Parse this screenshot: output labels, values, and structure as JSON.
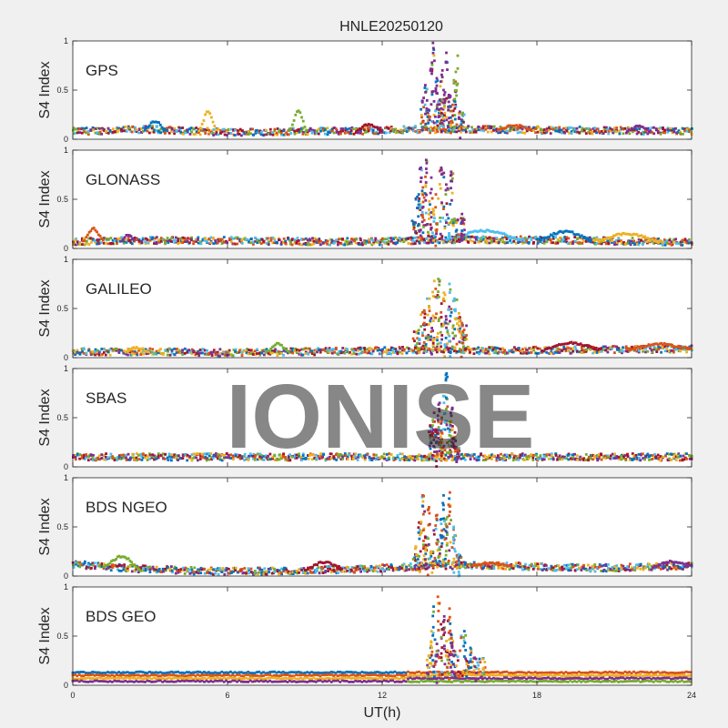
{
  "watermark": "IONISE",
  "chart_data": {
    "type": "scatter",
    "title": "HNLE20250120",
    "xlabel": "UT(h)",
    "ylabel": "S4 Index",
    "xlim": [
      0,
      24
    ],
    "xticks": [
      "0",
      "6",
      "12",
      "18",
      "24"
    ],
    "ylim": [
      0,
      1
    ],
    "yticks": [
      "0",
      "0.5",
      "1"
    ],
    "grid": false,
    "colors": [
      "#0072BD",
      "#D95319",
      "#EDB120",
      "#7E2F8E",
      "#77AC30",
      "#4DBEEE",
      "#A2142F"
    ],
    "panels": [
      {
        "label": "GPS",
        "baseline": [
          [
            0,
            0.08
          ],
          [
            3,
            0.1
          ],
          [
            6,
            0.07
          ],
          [
            9,
            0.08
          ],
          [
            12,
            0.09
          ],
          [
            13.5,
            0.1
          ],
          [
            16,
            0.1
          ],
          [
            20,
            0.09
          ],
          [
            24,
            0.08
          ]
        ],
        "arcs": [
          [
            2.8,
            3.6,
            0.18
          ],
          [
            4.9,
            5.6,
            0.28
          ],
          [
            8.4,
            9.1,
            0.28
          ],
          [
            11.0,
            12.0,
            0.15
          ],
          [
            16.5,
            17.8,
            0.14
          ],
          [
            21.5,
            22.4,
            0.13
          ]
        ],
        "spike_window": [
          13.5,
          15.2
        ],
        "spikes": [
          {
            "x": 13.6,
            "y": 0.42,
            "c": 3
          },
          {
            "x": 13.7,
            "y": 0.55,
            "c": 3
          },
          {
            "x": 13.8,
            "y": 0.3,
            "c": 3
          },
          {
            "x": 13.9,
            "y": 0.78,
            "c": 3
          },
          {
            "x": 14.0,
            "y": 0.98,
            "c": 3
          },
          {
            "x": 14.1,
            "y": 0.62,
            "c": 3
          },
          {
            "x": 14.2,
            "y": 0.4,
            "c": 3
          },
          {
            "x": 14.3,
            "y": 0.7,
            "c": 3
          },
          {
            "x": 14.4,
            "y": 0.5,
            "c": 3
          },
          {
            "x": 14.5,
            "y": 0.88,
            "c": 3
          },
          {
            "x": 14.6,
            "y": 0.45,
            "c": 3
          },
          {
            "x": 14.7,
            "y": 0.35,
            "c": 1
          },
          {
            "x": 14.8,
            "y": 0.6,
            "c": 4
          },
          {
            "x": 14.9,
            "y": 0.85,
            "c": 4
          },
          {
            "x": 15.0,
            "y": 0.28,
            "c": 3
          },
          {
            "x": 14.4,
            "y": 0.32,
            "c": 2
          }
        ]
      },
      {
        "label": "GLONASS",
        "baseline": [
          [
            0,
            0.07
          ],
          [
            3,
            0.08
          ],
          [
            6,
            0.08
          ],
          [
            9,
            0.07
          ],
          [
            12,
            0.07
          ],
          [
            14,
            0.09
          ],
          [
            16,
            0.09
          ],
          [
            20,
            0.08
          ],
          [
            24,
            0.06
          ]
        ],
        "arcs": [
          [
            0.4,
            1.2,
            0.2
          ],
          [
            1.9,
            2.4,
            0.14
          ],
          [
            14.5,
            17.5,
            0.18
          ],
          [
            18.0,
            20.2,
            0.17
          ],
          [
            20.2,
            22.8,
            0.15
          ]
        ],
        "spike_window": [
          13.2,
          15.2
        ],
        "spikes": [
          {
            "x": 13.2,
            "y": 0.28,
            "c": 0
          },
          {
            "x": 13.4,
            "y": 0.55,
            "c": 0
          },
          {
            "x": 13.5,
            "y": 0.82,
            "c": 3
          },
          {
            "x": 13.6,
            "y": 0.62,
            "c": 1
          },
          {
            "x": 13.7,
            "y": 0.9,
            "c": 3
          },
          {
            "x": 13.8,
            "y": 0.48,
            "c": 2
          },
          {
            "x": 13.9,
            "y": 0.72,
            "c": 3
          },
          {
            "x": 14.0,
            "y": 0.4,
            "c": 2
          },
          {
            "x": 14.1,
            "y": 0.55,
            "c": 1
          },
          {
            "x": 14.3,
            "y": 0.82,
            "c": 3
          },
          {
            "x": 14.5,
            "y": 0.65,
            "c": 3
          },
          {
            "x": 14.7,
            "y": 0.78,
            "c": 3
          },
          {
            "x": 14.8,
            "y": 0.3,
            "c": 4
          },
          {
            "x": 15.1,
            "y": 0.35,
            "c": 3
          }
        ]
      },
      {
        "label": "GALILEO",
        "baseline": [
          [
            0,
            0.06
          ],
          [
            3,
            0.06
          ],
          [
            6,
            0.05
          ],
          [
            9,
            0.06
          ],
          [
            12,
            0.07
          ],
          [
            14,
            0.08
          ],
          [
            16,
            0.07
          ],
          [
            20,
            0.08
          ],
          [
            24,
            0.09
          ]
        ],
        "arcs": [
          [
            2.0,
            3.0,
            0.1
          ],
          [
            7.5,
            8.4,
            0.14
          ],
          [
            18.2,
            20.5,
            0.15
          ],
          [
            21.5,
            24.0,
            0.14
          ]
        ],
        "spike_window": [
          13.2,
          15.3
        ],
        "spikes": [
          {
            "x": 13.4,
            "y": 0.28,
            "c": 4
          },
          {
            "x": 13.6,
            "y": 0.48,
            "c": 1
          },
          {
            "x": 13.8,
            "y": 0.6,
            "c": 2
          },
          {
            "x": 13.9,
            "y": 0.4,
            "c": 3
          },
          {
            "x": 14.0,
            "y": 0.78,
            "c": 2
          },
          {
            "x": 14.1,
            "y": 0.7,
            "c": 1
          },
          {
            "x": 14.2,
            "y": 0.8,
            "c": 4
          },
          {
            "x": 14.3,
            "y": 0.55,
            "c": 6
          },
          {
            "x": 14.4,
            "y": 0.66,
            "c": 2
          },
          {
            "x": 14.5,
            "y": 0.42,
            "c": 3
          },
          {
            "x": 14.6,
            "y": 0.75,
            "c": 5
          },
          {
            "x": 14.8,
            "y": 0.6,
            "c": 5
          },
          {
            "x": 15.0,
            "y": 0.45,
            "c": 2
          },
          {
            "x": 15.1,
            "y": 0.35,
            "c": 1
          }
        ]
      },
      {
        "label": "SBAS",
        "baseline": [
          [
            0,
            0.1
          ],
          [
            6,
            0.1
          ],
          [
            12,
            0.1
          ],
          [
            18,
            0.1
          ],
          [
            24,
            0.1
          ]
        ],
        "arcs": [],
        "spike_window": [
          13.8,
          15.0
        ],
        "spikes": [
          {
            "x": 13.9,
            "y": 0.42,
            "c": 6
          },
          {
            "x": 14.0,
            "y": 0.55,
            "c": 3
          },
          {
            "x": 14.1,
            "y": 0.38,
            "c": 6
          },
          {
            "x": 14.2,
            "y": 0.65,
            "c": 3
          },
          {
            "x": 14.3,
            "y": 0.5,
            "c": 1
          },
          {
            "x": 14.4,
            "y": 0.72,
            "c": 5
          },
          {
            "x": 14.5,
            "y": 0.95,
            "c": 0
          },
          {
            "x": 14.6,
            "y": 0.45,
            "c": 4
          },
          {
            "x": 14.7,
            "y": 0.6,
            "c": 3
          },
          {
            "x": 14.8,
            "y": 0.35,
            "c": 6
          },
          {
            "x": 14.9,
            "y": 0.2,
            "c": 3
          }
        ]
      },
      {
        "label": "BDS NGEO",
        "baseline": [
          [
            0,
            0.12
          ],
          [
            2,
            0.08
          ],
          [
            5,
            0.05
          ],
          [
            8,
            0.05
          ],
          [
            11,
            0.07
          ],
          [
            13,
            0.09
          ],
          [
            15,
            0.11
          ],
          [
            17,
            0.1
          ],
          [
            20,
            0.08
          ],
          [
            24,
            0.1
          ]
        ],
        "arcs": [
          [
            1.2,
            2.6,
            0.2
          ],
          [
            9.0,
            10.5,
            0.14
          ],
          [
            15.5,
            17.0,
            0.13
          ],
          [
            22.5,
            24.0,
            0.15
          ]
        ],
        "spike_window": [
          13.2,
          15.1
        ],
        "spikes": [
          {
            "x": 13.3,
            "y": 0.3,
            "c": 2
          },
          {
            "x": 13.5,
            "y": 0.55,
            "c": 2
          },
          {
            "x": 13.6,
            "y": 0.82,
            "c": 1
          },
          {
            "x": 13.7,
            "y": 0.4,
            "c": 6
          },
          {
            "x": 13.8,
            "y": 0.7,
            "c": 1
          },
          {
            "x": 13.9,
            "y": 0.25,
            "c": 2
          },
          {
            "x": 14.1,
            "y": 0.62,
            "c": 1
          },
          {
            "x": 14.2,
            "y": 0.35,
            "c": 4
          },
          {
            "x": 14.3,
            "y": 0.58,
            "c": 0
          },
          {
            "x": 14.4,
            "y": 0.82,
            "c": 0
          },
          {
            "x": 14.5,
            "y": 0.6,
            "c": 4
          },
          {
            "x": 14.6,
            "y": 0.85,
            "c": 1
          },
          {
            "x": 14.8,
            "y": 0.5,
            "c": 5
          },
          {
            "x": 15.0,
            "y": 0.22,
            "c": 5
          }
        ]
      },
      {
        "label": "BDS GEO",
        "baseline": [
          [
            0,
            0.12
          ],
          [
            6,
            0.12
          ],
          [
            12,
            0.12
          ],
          [
            18,
            0.12
          ],
          [
            24,
            0.12
          ]
        ],
        "baseline_levels": [
          0.13,
          0.1,
          0.07,
          0.04
        ],
        "arcs": [],
        "spike_window": [
          13.7,
          16.0
        ],
        "spikes": [
          {
            "x": 13.8,
            "y": 0.3,
            "c": 2
          },
          {
            "x": 13.9,
            "y": 0.55,
            "c": 2
          },
          {
            "x": 14.0,
            "y": 0.8,
            "c": 0
          },
          {
            "x": 14.1,
            "y": 0.42,
            "c": 3
          },
          {
            "x": 14.2,
            "y": 0.9,
            "c": 1
          },
          {
            "x": 14.3,
            "y": 0.62,
            "c": 6
          },
          {
            "x": 14.4,
            "y": 0.7,
            "c": 3
          },
          {
            "x": 14.5,
            "y": 0.45,
            "c": 2
          },
          {
            "x": 14.6,
            "y": 0.78,
            "c": 1
          },
          {
            "x": 14.7,
            "y": 0.52,
            "c": 3
          },
          {
            "x": 14.8,
            "y": 0.35,
            "c": 3
          },
          {
            "x": 15.2,
            "y": 0.55,
            "c": 0
          },
          {
            "x": 15.4,
            "y": 0.38,
            "c": 0
          },
          {
            "x": 15.6,
            "y": 0.28,
            "c": 3
          }
        ]
      }
    ]
  }
}
